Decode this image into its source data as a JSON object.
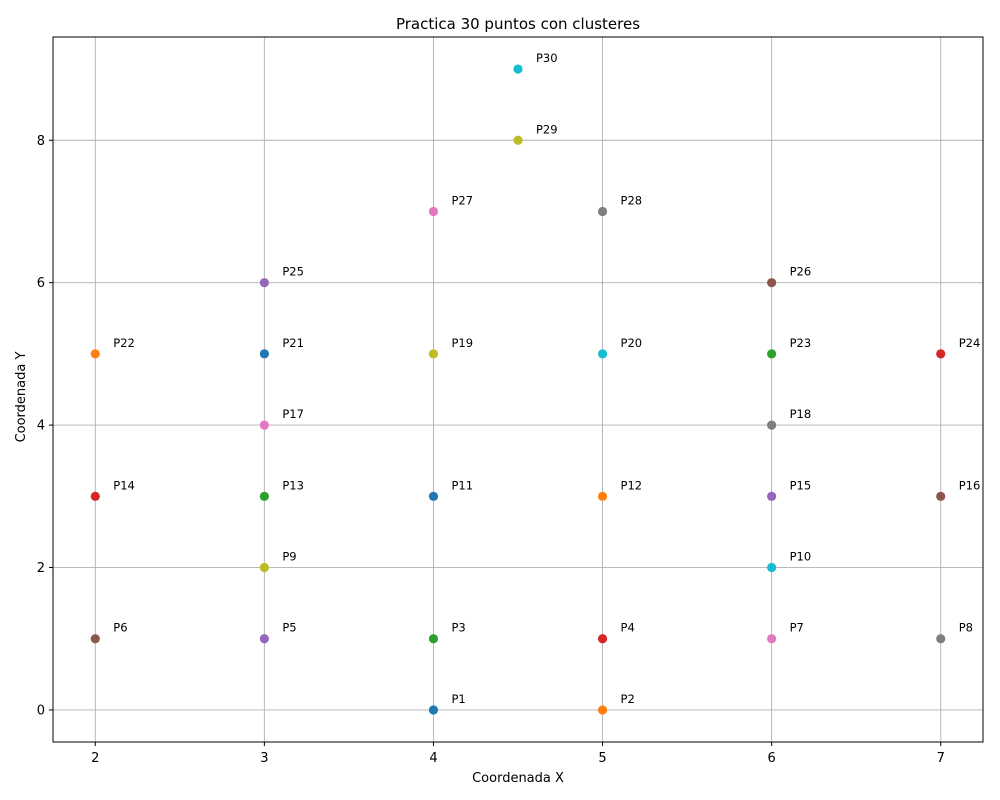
{
  "chart_data": {
    "type": "scatter",
    "title": "Practica 30 puntos con clusteres",
    "xlabel": "Coordenada X",
    "ylabel": "Coordenada Y",
    "xlim": [
      1.75,
      7.25
    ],
    "ylim": [
      -0.45,
      9.45
    ],
    "xticks": [
      "2",
      "3",
      "4",
      "5",
      "6",
      "7"
    ],
    "yticks": [
      "0",
      "2",
      "4",
      "6",
      "8"
    ],
    "grid": true,
    "points": [
      {
        "label": "P1",
        "x": 4,
        "y": 0,
        "color": "#1f77b4"
      },
      {
        "label": "P2",
        "x": 5,
        "y": 0,
        "color": "#ff7f0e"
      },
      {
        "label": "P3",
        "x": 4,
        "y": 1,
        "color": "#2ca02c"
      },
      {
        "label": "P4",
        "x": 5,
        "y": 1,
        "color": "#d62728"
      },
      {
        "label": "P5",
        "x": 3,
        "y": 1,
        "color": "#9467bd"
      },
      {
        "label": "P6",
        "x": 2,
        "y": 1,
        "color": "#8c564b"
      },
      {
        "label": "P7",
        "x": 6,
        "y": 1,
        "color": "#e377c2"
      },
      {
        "label": "P8",
        "x": 7,
        "y": 1,
        "color": "#7f7f7f"
      },
      {
        "label": "P9",
        "x": 3,
        "y": 2,
        "color": "#bcbd22"
      },
      {
        "label": "P10",
        "x": 6,
        "y": 2,
        "color": "#17becf"
      },
      {
        "label": "P11",
        "x": 4,
        "y": 3,
        "color": "#1f77b4"
      },
      {
        "label": "P12",
        "x": 5,
        "y": 3,
        "color": "#ff7f0e"
      },
      {
        "label": "P13",
        "x": 3,
        "y": 3,
        "color": "#2ca02c"
      },
      {
        "label": "P14",
        "x": 2,
        "y": 3,
        "color": "#d62728"
      },
      {
        "label": "P15",
        "x": 6,
        "y": 3,
        "color": "#9467bd"
      },
      {
        "label": "P16",
        "x": 7,
        "y": 3,
        "color": "#8c564b"
      },
      {
        "label": "P17",
        "x": 3,
        "y": 4,
        "color": "#e377c2"
      },
      {
        "label": "P18",
        "x": 6,
        "y": 4,
        "color": "#7f7f7f"
      },
      {
        "label": "P19",
        "x": 4,
        "y": 5,
        "color": "#bcbd22"
      },
      {
        "label": "P20",
        "x": 5,
        "y": 5,
        "color": "#17becf"
      },
      {
        "label": "P21",
        "x": 3,
        "y": 5,
        "color": "#1f77b4"
      },
      {
        "label": "P22",
        "x": 2,
        "y": 5,
        "color": "#ff7f0e"
      },
      {
        "label": "P23",
        "x": 6,
        "y": 5,
        "color": "#2ca02c"
      },
      {
        "label": "P24",
        "x": 7,
        "y": 5,
        "color": "#d62728"
      },
      {
        "label": "P25",
        "x": 3,
        "y": 6,
        "color": "#9467bd"
      },
      {
        "label": "P26",
        "x": 6,
        "y": 6,
        "color": "#8c564b"
      },
      {
        "label": "P27",
        "x": 4,
        "y": 7,
        "color": "#e377c2"
      },
      {
        "label": "P28",
        "x": 5,
        "y": 7,
        "color": "#7f7f7f"
      },
      {
        "label": "P29",
        "x": 4.5,
        "y": 8,
        "color": "#bcbd22"
      },
      {
        "label": "P30",
        "x": 4.5,
        "y": 9,
        "color": "#17becf"
      }
    ]
  }
}
